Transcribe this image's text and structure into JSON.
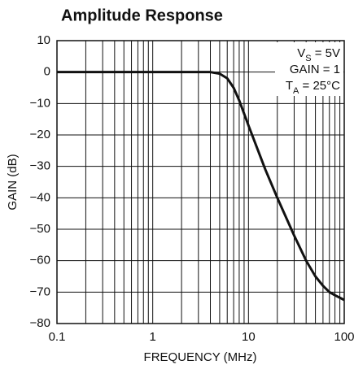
{
  "chart_data": {
    "type": "line",
    "title": "Amplitude Response",
    "xlabel": "FREQUENCY (MHz)",
    "ylabel": "GAIN (dB)",
    "xscale": "log",
    "grid": true,
    "color": "#111111",
    "xlim": [
      0.1,
      100
    ],
    "ylim": [
      -80,
      10
    ],
    "xticks": [
      0.1,
      1,
      10,
      100
    ],
    "xminorticks": [
      0.2,
      0.3,
      0.4,
      0.5,
      0.6,
      0.7,
      0.8,
      0.9,
      2,
      3,
      4,
      5,
      6,
      7,
      8,
      9,
      20,
      30,
      40,
      50,
      60,
      70,
      80,
      90
    ],
    "yticks": [
      10,
      0,
      {
        "value": -10,
        "label": "−10"
      },
      {
        "value": -20,
        "label": "−20"
      },
      {
        "value": -30,
        "label": "−30"
      },
      {
        "value": -40,
        "label": "−40"
      },
      {
        "value": -50,
        "label": "−50"
      },
      {
        "value": -60,
        "label": "−60"
      },
      {
        "value": -70,
        "label": "−70"
      },
      {
        "value": -80,
        "label": "−80"
      }
    ],
    "annotations": [
      [
        "V",
        "S",
        " = 5V"
      ],
      [
        "GAIN = 1"
      ],
      [
        "T",
        "A",
        " = 25°C"
      ]
    ],
    "x": [
      0.1,
      1,
      3,
      4,
      5,
      6,
      7,
      8,
      10,
      15,
      20,
      30,
      40,
      50,
      60,
      70,
      80,
      100
    ],
    "values": [
      0,
      0,
      0,
      0,
      -0.5,
      -2,
      -5,
      -9,
      -17,
      -31,
      -40,
      -52,
      -60,
      -65,
      -68,
      -70,
      -71,
      -72.5
    ]
  }
}
